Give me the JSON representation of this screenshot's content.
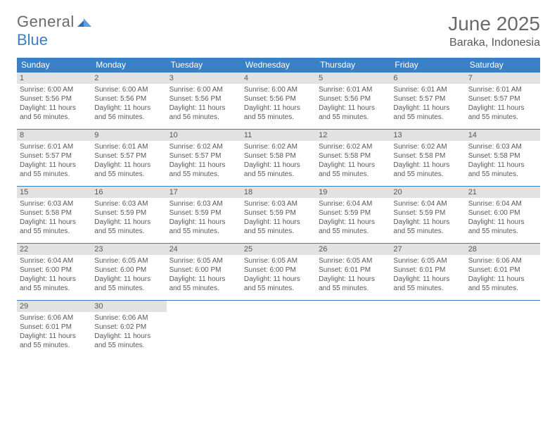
{
  "brand": {
    "part1": "General",
    "part2": "Blue",
    "part1_color": "#6a6a6a",
    "part2_color": "#3b7fc4"
  },
  "title": {
    "month": "June 2025",
    "location": "Baraka, Indonesia",
    "month_fontsize": 28,
    "loc_fontsize": 16,
    "color": "#6a6a6a"
  },
  "colors": {
    "header_bg": "#3b7fc4",
    "header_text": "#ffffff",
    "daynum_bg": "#e2e2e2",
    "body_text": "#595959",
    "rule": "#3b7fc4",
    "page_bg": "#ffffff"
  },
  "day_headers": [
    "Sunday",
    "Monday",
    "Tuesday",
    "Wednesday",
    "Thursday",
    "Friday",
    "Saturday"
  ],
  "labels": {
    "sunrise": "Sunrise: ",
    "sunset": "Sunset: ",
    "daylight": "Daylight: "
  },
  "days": [
    {
      "n": "1",
      "sr": "6:00 AM",
      "ss": "5:56 PM",
      "dl": "11 hours and 56 minutes."
    },
    {
      "n": "2",
      "sr": "6:00 AM",
      "ss": "5:56 PM",
      "dl": "11 hours and 56 minutes."
    },
    {
      "n": "3",
      "sr": "6:00 AM",
      "ss": "5:56 PM",
      "dl": "11 hours and 56 minutes."
    },
    {
      "n": "4",
      "sr": "6:00 AM",
      "ss": "5:56 PM",
      "dl": "11 hours and 55 minutes."
    },
    {
      "n": "5",
      "sr": "6:01 AM",
      "ss": "5:56 PM",
      "dl": "11 hours and 55 minutes."
    },
    {
      "n": "6",
      "sr": "6:01 AM",
      "ss": "5:57 PM",
      "dl": "11 hours and 55 minutes."
    },
    {
      "n": "7",
      "sr": "6:01 AM",
      "ss": "5:57 PM",
      "dl": "11 hours and 55 minutes."
    },
    {
      "n": "8",
      "sr": "6:01 AM",
      "ss": "5:57 PM",
      "dl": "11 hours and 55 minutes."
    },
    {
      "n": "9",
      "sr": "6:01 AM",
      "ss": "5:57 PM",
      "dl": "11 hours and 55 minutes."
    },
    {
      "n": "10",
      "sr": "6:02 AM",
      "ss": "5:57 PM",
      "dl": "11 hours and 55 minutes."
    },
    {
      "n": "11",
      "sr": "6:02 AM",
      "ss": "5:58 PM",
      "dl": "11 hours and 55 minutes."
    },
    {
      "n": "12",
      "sr": "6:02 AM",
      "ss": "5:58 PM",
      "dl": "11 hours and 55 minutes."
    },
    {
      "n": "13",
      "sr": "6:02 AM",
      "ss": "5:58 PM",
      "dl": "11 hours and 55 minutes."
    },
    {
      "n": "14",
      "sr": "6:03 AM",
      "ss": "5:58 PM",
      "dl": "11 hours and 55 minutes."
    },
    {
      "n": "15",
      "sr": "6:03 AM",
      "ss": "5:58 PM",
      "dl": "11 hours and 55 minutes."
    },
    {
      "n": "16",
      "sr": "6:03 AM",
      "ss": "5:59 PM",
      "dl": "11 hours and 55 minutes."
    },
    {
      "n": "17",
      "sr": "6:03 AM",
      "ss": "5:59 PM",
      "dl": "11 hours and 55 minutes."
    },
    {
      "n": "18",
      "sr": "6:03 AM",
      "ss": "5:59 PM",
      "dl": "11 hours and 55 minutes."
    },
    {
      "n": "19",
      "sr": "6:04 AM",
      "ss": "5:59 PM",
      "dl": "11 hours and 55 minutes."
    },
    {
      "n": "20",
      "sr": "6:04 AM",
      "ss": "5:59 PM",
      "dl": "11 hours and 55 minutes."
    },
    {
      "n": "21",
      "sr": "6:04 AM",
      "ss": "6:00 PM",
      "dl": "11 hours and 55 minutes."
    },
    {
      "n": "22",
      "sr": "6:04 AM",
      "ss": "6:00 PM",
      "dl": "11 hours and 55 minutes."
    },
    {
      "n": "23",
      "sr": "6:05 AM",
      "ss": "6:00 PM",
      "dl": "11 hours and 55 minutes."
    },
    {
      "n": "24",
      "sr": "6:05 AM",
      "ss": "6:00 PM",
      "dl": "11 hours and 55 minutes."
    },
    {
      "n": "25",
      "sr": "6:05 AM",
      "ss": "6:00 PM",
      "dl": "11 hours and 55 minutes."
    },
    {
      "n": "26",
      "sr": "6:05 AM",
      "ss": "6:01 PM",
      "dl": "11 hours and 55 minutes."
    },
    {
      "n": "27",
      "sr": "6:05 AM",
      "ss": "6:01 PM",
      "dl": "11 hours and 55 minutes."
    },
    {
      "n": "28",
      "sr": "6:06 AM",
      "ss": "6:01 PM",
      "dl": "11 hours and 55 minutes."
    },
    {
      "n": "29",
      "sr": "6:06 AM",
      "ss": "6:01 PM",
      "dl": "11 hours and 55 minutes."
    },
    {
      "n": "30",
      "sr": "6:06 AM",
      "ss": "6:02 PM",
      "dl": "11 hours and 55 minutes."
    }
  ],
  "layout": {
    "columns": 7,
    "rows": 5,
    "first_day_column": 0,
    "total_days": 30
  }
}
